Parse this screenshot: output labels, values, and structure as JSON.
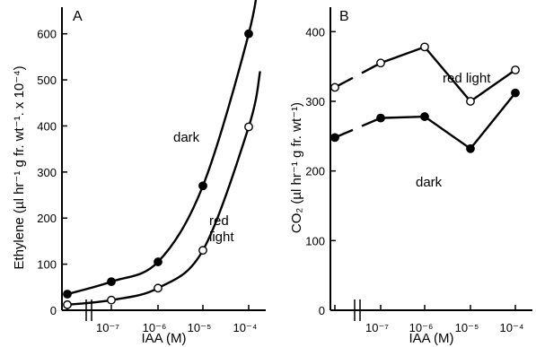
{
  "chart_data": [
    {
      "panel": "A",
      "type": "line",
      "xlabel": "IAA (M)",
      "ylabel": "Ethylene (µl hr⁻¹ g fr. wt⁻¹. x 10⁻⁴)",
      "x_tick_labels": [
        "10⁻⁷",
        "10⁻⁶",
        "10⁻⁵",
        "10⁻⁴"
      ],
      "x_axis_break": true,
      "x_scale": "log",
      "y_ticks": [
        0,
        100,
        200,
        300,
        400,
        500,
        600
      ],
      "ylim": [
        0,
        650
      ],
      "series": [
        {
          "name": "dark",
          "marker": "filled-circle",
          "points": [
            {
              "x": "control",
              "y": 35
            },
            {
              "x": 1e-07,
              "y": 62
            },
            {
              "x": 1e-06,
              "y": 105
            },
            {
              "x": 1e-05,
              "y": 270
            },
            {
              "x": 0.0001,
              "y": 600
            }
          ]
        },
        {
          "name": "red light",
          "marker": "open-circle",
          "points": [
            {
              "x": "control",
              "y": 12
            },
            {
              "x": 1e-07,
              "y": 22
            },
            {
              "x": 1e-06,
              "y": 48
            },
            {
              "x": 1e-05,
              "y": 130
            },
            {
              "x": 0.0001,
              "y": 398
            }
          ]
        }
      ]
    },
    {
      "panel": "B",
      "type": "line",
      "xlabel": "IAA (M)",
      "ylabel": "CO₂ (µl hr⁻¹ g fr. wt⁻¹)",
      "x_tick_labels": [
        "10⁻⁷",
        "10⁻⁶",
        "10⁻⁵",
        "10⁻⁴"
      ],
      "x_axis_break": true,
      "x_scale": "log",
      "y_ticks": [
        0,
        100,
        200,
        300,
        400
      ],
      "ylim": [
        0,
        430
      ],
      "series": [
        {
          "name": "red light",
          "marker": "open-circle",
          "points": [
            {
              "x": "control",
              "y": 320
            },
            {
              "x": 1e-07,
              "y": 355
            },
            {
              "x": 1e-06,
              "y": 378
            },
            {
              "x": 1e-05,
              "y": 300
            },
            {
              "x": 0.0001,
              "y": 345
            }
          ]
        },
        {
          "name": "dark",
          "marker": "filled-circle",
          "points": [
            {
              "x": "control",
              "y": 248
            },
            {
              "x": 1e-07,
              "y": 276
            },
            {
              "x": 1e-06,
              "y": 278
            },
            {
              "x": 1e-05,
              "y": 232
            },
            {
              "x": 0.0001,
              "y": 312
            }
          ]
        }
      ]
    }
  ]
}
